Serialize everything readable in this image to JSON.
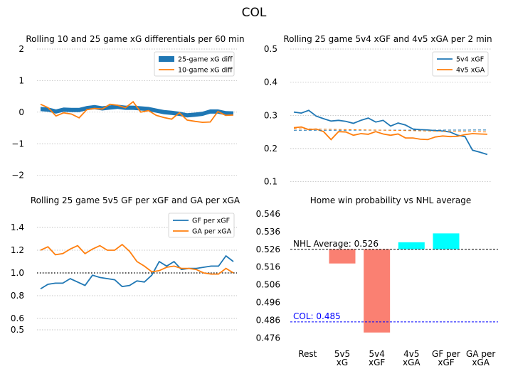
{
  "suptitle": "COL",
  "colors": {
    "blue": "#1f77b4",
    "orange": "#ff7f0e",
    "salmon": "#fa8072",
    "cyan": "#00ffff",
    "grid": "#b0b0b0",
    "nhl_line": "#000000",
    "team_line": "#0000ff"
  },
  "chart_data": [
    {
      "id": "xg_diff",
      "type": "area+line",
      "title": "Rolling 10 and 25 game xG differentials per 60 min",
      "ylim": [
        -2.3,
        2.0
      ],
      "yticks": [
        "2",
        "1",
        "0",
        "−1",
        "−2"
      ],
      "ytick_values": [
        2,
        1,
        0,
        -1,
        -2
      ],
      "grid": "y-dotted",
      "legend": [
        "25-game xG diff",
        "10-game xG diff"
      ],
      "legend_loc": "top-right",
      "series": [
        {
          "name": "25-game xG diff",
          "kind": "filled-band",
          "values": [
            0.1,
            0.08,
            0.02,
            0.08,
            0.07,
            0.07,
            0.13,
            0.16,
            0.12,
            0.15,
            0.17,
            0.14,
            0.14,
            0.12,
            0.1,
            0.05,
            0.0,
            -0.02,
            -0.05,
            -0.1,
            -0.08,
            -0.05,
            0.02,
            0.02,
            -0.03,
            -0.04
          ]
        },
        {
          "name": "10-game xG diff",
          "kind": "line",
          "values": [
            0.25,
            0.14,
            -0.12,
            -0.02,
            -0.06,
            -0.18,
            0.08,
            0.12,
            0.1,
            0.25,
            0.22,
            0.14,
            0.33,
            0.0,
            0.05,
            -0.1,
            -0.17,
            -0.22,
            -0.02,
            -0.25,
            -0.29,
            -0.32,
            -0.31,
            0.02,
            -0.1,
            -0.09
          ]
        }
      ]
    },
    {
      "id": "pp_pk",
      "type": "line",
      "title": "Rolling 25 game 5v4 xGF and 4v5 xGA per 2 min",
      "ylim": [
        0.08,
        0.5
      ],
      "yticks": [
        "0.5",
        "0.4",
        "0.3",
        "0.2",
        "0.1"
      ],
      "ytick_values": [
        0.5,
        0.4,
        0.3,
        0.2,
        0.1
      ],
      "grid": "y-dotted",
      "legend": [
        "5v4 xGF",
        "4v5 xGA"
      ],
      "legend_loc": "top-right",
      "series": [
        {
          "name": "5v4 xGF",
          "values": [
            0.31,
            0.307,
            0.315,
            0.298,
            0.29,
            0.283,
            0.285,
            0.282,
            0.276,
            0.285,
            0.292,
            0.28,
            0.285,
            0.268,
            0.277,
            0.271,
            0.259,
            0.257,
            0.256,
            0.254,
            0.253,
            0.25,
            0.24,
            0.236,
            0.195,
            0.189,
            0.182
          ]
        },
        {
          "name": "4v5 xGA",
          "values": [
            0.263,
            0.265,
            0.257,
            0.259,
            0.251,
            0.227,
            0.251,
            0.25,
            0.24,
            0.245,
            0.243,
            0.251,
            0.244,
            0.24,
            0.244,
            0.232,
            0.232,
            0.228,
            0.227,
            0.235,
            0.238,
            0.236,
            0.237,
            0.242,
            0.245,
            0.244,
            0.243
          ]
        },
        {
          "name": "5v4 trend",
          "dashed": true,
          "color": "#1f77b4",
          "values": [
            0.255,
            0.256
          ]
        },
        {
          "name": "4v5 trend",
          "dashed": true,
          "color": "#ff7f0e",
          "values": [
            0.26,
            0.25
          ]
        }
      ]
    },
    {
      "id": "finishing",
      "type": "line",
      "title": "Rolling 25 game 5v5 GF per xGF and GA per xGA",
      "ylim": [
        0.4,
        1.55
      ],
      "yticks": [
        "1.4",
        "1.2",
        "1.0",
        "0.8",
        "0.6",
        "0.5"
      ],
      "ytick_values": [
        1.4,
        1.2,
        1.0,
        0.8,
        0.6,
        0.5
      ],
      "grid": "y-dotted",
      "reference_line": 1.0,
      "legend": [
        "GF per xGF",
        "GA per xGA"
      ],
      "legend_loc": "top-right",
      "series": [
        {
          "name": "GF per xGF",
          "values": [
            0.86,
            0.9,
            0.91,
            0.91,
            0.95,
            0.92,
            0.89,
            0.98,
            0.96,
            0.95,
            0.94,
            0.88,
            0.89,
            0.93,
            0.92,
            0.98,
            1.1,
            1.06,
            1.1,
            1.03,
            1.04,
            1.04,
            1.05,
            1.06,
            1.06,
            1.15,
            1.1
          ]
        },
        {
          "name": "GA per xGA",
          "values": [
            1.2,
            1.23,
            1.16,
            1.17,
            1.21,
            1.24,
            1.17,
            1.21,
            1.24,
            1.2,
            1.2,
            1.25,
            1.19,
            1.1,
            1.06,
            1.01,
            1.02,
            1.05,
            1.06,
            1.04,
            1.04,
            1.03,
            1.0,
            0.99,
            0.99,
            1.04,
            1.0
          ]
        }
      ]
    },
    {
      "id": "win_prob",
      "type": "bar",
      "title": "Home win probability vs NHL average",
      "categories": [
        "Rest",
        "5v5\nxG",
        "5v4\nxGF",
        "4v5\nxGA",
        "GF per\nxGF",
        "GA per\nxGA"
      ],
      "baseline": 0.526,
      "values": [
        0.526,
        0.518,
        0.479,
        0.53,
        0.535,
        0.526
      ],
      "bar_colors": [
        "#fa8072",
        "#fa8072",
        "#fa8072",
        "#00ffff",
        "#00ffff",
        "#00ffff"
      ],
      "ylim": [
        0.4725,
        0.548
      ],
      "yticks": [
        "0.546",
        "0.536",
        "0.526",
        "0.516",
        "0.506",
        "0.496",
        "0.486",
        "0.476"
      ],
      "ytick_values": [
        0.546,
        0.536,
        0.526,
        0.516,
        0.506,
        0.496,
        0.486,
        0.476
      ],
      "grid": "y-dotted",
      "annotations": [
        {
          "text": "NHL Average: 0.526",
          "value": 0.526,
          "color": "#000000"
        },
        {
          "text": "COL: 0.485",
          "value": 0.485,
          "color": "#0000ff"
        }
      ]
    }
  ]
}
